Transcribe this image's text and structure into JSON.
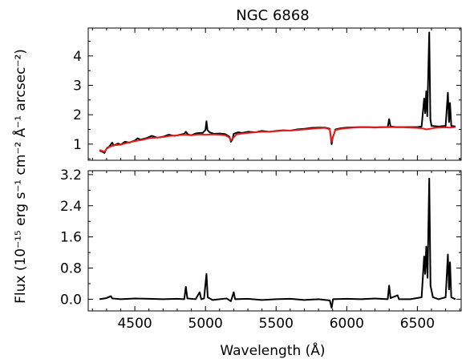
{
  "chart_data": {
    "type": "line",
    "title": "NGC 6868",
    "xlabel": "Wavelength (Å)",
    "ylabel": "Flux (10⁻¹⁵ erg s⁻¹ cm⁻² Å⁻¹ arcsec⁻²)",
    "xlim": [
      4170,
      6810
    ],
    "x_ticks": [
      4500,
      5000,
      5500,
      6000,
      6500
    ],
    "panels": [
      {
        "ylim": [
          0.45,
          4.95
        ],
        "y_ticks": [
          1,
          2,
          3,
          4
        ],
        "series": [
          {
            "color": "#000000",
            "points": [
              [
                4250,
                0.78
              ],
              [
                4270,
                0.74
              ],
              [
                4285,
                0.7
              ],
              [
                4300,
                0.85
              ],
              [
                4320,
                0.92
              ],
              [
                4340,
                1.05
              ],
              [
                4350,
                0.95
              ],
              [
                4380,
                1.02
              ],
              [
                4400,
                0.98
              ],
              [
                4430,
                1.08
              ],
              [
                4460,
                1.05
              ],
              [
                4500,
                1.12
              ],
              [
                4520,
                1.2
              ],
              [
                4540,
                1.15
              ],
              [
                4580,
                1.2
              ],
              [
                4620,
                1.28
              ],
              [
                4660,
                1.22
              ],
              [
                4700,
                1.25
              ],
              [
                4740,
                1.32
              ],
              [
                4780,
                1.28
              ],
              [
                4820,
                1.32
              ],
              [
                4850,
                1.35
              ],
              [
                4861,
                1.42
              ],
              [
                4875,
                1.33
              ],
              [
                4900,
                1.3
              ],
              [
                4930,
                1.36
              ],
              [
                4959,
                1.38
              ],
              [
                4980,
                1.38
              ],
              [
                5000,
                1.48
              ],
              [
                5007,
                1.78
              ],
              [
                5014,
                1.48
              ],
              [
                5030,
                1.4
              ],
              [
                5060,
                1.35
              ],
              [
                5100,
                1.36
              ],
              [
                5140,
                1.34
              ],
              [
                5170,
                1.25
              ],
              [
                5180,
                1.08
              ],
              [
                5190,
                1.15
              ],
              [
                5200,
                1.35
              ],
              [
                5230,
                1.4
              ],
              [
                5260,
                1.38
              ],
              [
                5300,
                1.42
              ],
              [
                5350,
                1.4
              ],
              [
                5400,
                1.45
              ],
              [
                5450,
                1.42
              ],
              [
                5500,
                1.45
              ],
              [
                5550,
                1.47
              ],
              [
                5600,
                1.46
              ],
              [
                5650,
                1.5
              ],
              [
                5700,
                1.52
              ],
              [
                5750,
                1.55
              ],
              [
                5800,
                1.56
              ],
              [
                5850,
                1.56
              ],
              [
                5880,
                1.52
              ],
              [
                5893,
                1.0
              ],
              [
                5900,
                1.2
              ],
              [
                5920,
                1.5
              ],
              [
                5960,
                1.54
              ],
              [
                6000,
                1.56
              ],
              [
                6050,
                1.57
              ],
              [
                6100,
                1.58
              ],
              [
                6150,
                1.58
              ],
              [
                6200,
                1.57
              ],
              [
                6250,
                1.58
              ],
              [
                6290,
                1.58
              ],
              [
                6300,
                1.85
              ],
              [
                6310,
                1.6
              ],
              [
                6350,
                1.58
              ],
              [
                6400,
                1.58
              ],
              [
                6450,
                1.58
              ],
              [
                6500,
                1.58
              ],
              [
                6530,
                1.6
              ],
              [
                6548,
                2.55
              ],
              [
                6555,
                2.05
              ],
              [
                6563,
                2.8
              ],
              [
                6570,
                1.95
              ],
              [
                6584,
                4.8
              ],
              [
                6592,
                1.85
              ],
              [
                6600,
                1.62
              ],
              [
                6650,
                1.6
              ],
              [
                6700,
                1.62
              ],
              [
                6716,
                2.75
              ],
              [
                6724,
                1.75
              ],
              [
                6731,
                2.4
              ],
              [
                6740,
                1.62
              ],
              [
                6770,
                1.6
              ]
            ]
          },
          {
            "color": "#e81e1e",
            "points": [
              [
                4250,
                0.8
              ],
              [
                4270,
                0.77
              ],
              [
                4285,
                0.74
              ],
              [
                4300,
                0.84
              ],
              [
                4320,
                0.9
              ],
              [
                4350,
                0.96
              ],
              [
                4400,
                0.98
              ],
              [
                4450,
                1.05
              ],
              [
                4500,
                1.1
              ],
              [
                4550,
                1.14
              ],
              [
                4600,
                1.2
              ],
              [
                4650,
                1.22
              ],
              [
                4700,
                1.24
              ],
              [
                4750,
                1.28
              ],
              [
                4800,
                1.3
              ],
              [
                4850,
                1.32
              ],
              [
                4900,
                1.3
              ],
              [
                4950,
                1.33
              ],
              [
                5000,
                1.32
              ],
              [
                5050,
                1.33
              ],
              [
                5100,
                1.32
              ],
              [
                5140,
                1.3
              ],
              [
                5170,
                1.22
              ],
              [
                5180,
                1.12
              ],
              [
                5190,
                1.18
              ],
              [
                5220,
                1.33
              ],
              [
                5260,
                1.36
              ],
              [
                5300,
                1.38
              ],
              [
                5350,
                1.4
              ],
              [
                5400,
                1.42
              ],
              [
                5450,
                1.42
              ],
              [
                5500,
                1.44
              ],
              [
                5550,
                1.46
              ],
              [
                5600,
                1.46
              ],
              [
                5650,
                1.48
              ],
              [
                5700,
                1.5
              ],
              [
                5750,
                1.52
              ],
              [
                5800,
                1.54
              ],
              [
                5850,
                1.55
              ],
              [
                5880,
                1.5
              ],
              [
                5893,
                1.08
              ],
              [
                5900,
                1.22
              ],
              [
                5920,
                1.48
              ],
              [
                5960,
                1.52
              ],
              [
                6000,
                1.54
              ],
              [
                6050,
                1.56
              ],
              [
                6100,
                1.57
              ],
              [
                6150,
                1.57
              ],
              [
                6200,
                1.56
              ],
              [
                6250,
                1.57
              ],
              [
                6300,
                1.58
              ],
              [
                6350,
                1.57
              ],
              [
                6400,
                1.57
              ],
              [
                6450,
                1.56
              ],
              [
                6500,
                1.55
              ],
              [
                6540,
                1.53
              ],
              [
                6563,
                1.5
              ],
              [
                6590,
                1.52
              ],
              [
                6620,
                1.55
              ],
              [
                6650,
                1.56
              ],
              [
                6700,
                1.57
              ],
              [
                6730,
                1.56
              ],
              [
                6770,
                1.58
              ]
            ]
          }
        ]
      },
      {
        "ylim": [
          -0.3,
          3.3
        ],
        "y_ticks": [
          0.0,
          0.8,
          1.6,
          2.4,
          3.2
        ],
        "y_tick_labels": [
          "0.0",
          "0.8",
          "1.6",
          "2.4",
          "3.2"
        ],
        "series": [
          {
            "color": "#000000",
            "points": [
              [
                4250,
                0.0
              ],
              [
                4300,
                0.03
              ],
              [
                4330,
                0.08
              ],
              [
                4340,
                0.02
              ],
              [
                4400,
                0.0
              ],
              [
                4500,
                0.02
              ],
              [
                4600,
                0.01
              ],
              [
                4700,
                0.0
              ],
              [
                4800,
                0.01
              ],
              [
                4850,
                0.0
              ],
              [
                4861,
                0.32
              ],
              [
                4872,
                0.02
              ],
              [
                4930,
                0.0
              ],
              [
                4959,
                0.18
              ],
              [
                4970,
                0.0
              ],
              [
                4990,
                0.02
              ],
              [
                5007,
                0.65
              ],
              [
                5016,
                0.05
              ],
              [
                5050,
                -0.02
              ],
              [
                5100,
                0.0
              ],
              [
                5150,
                0.02
              ],
              [
                5180,
                -0.05
              ],
              [
                5200,
                0.18
              ],
              [
                5210,
                0.0
              ],
              [
                5300,
                0.01
              ],
              [
                5400,
                -0.02
              ],
              [
                5500,
                0.0
              ],
              [
                5600,
                0.01
              ],
              [
                5700,
                -0.02
              ],
              [
                5800,
                0.0
              ],
              [
                5850,
                -0.02
              ],
              [
                5880,
                -0.03
              ],
              [
                5893,
                -0.22
              ],
              [
                5903,
                0.0
              ],
              [
                6000,
                0.01
              ],
              [
                6100,
                0.0
              ],
              [
                6200,
                0.02
              ],
              [
                6290,
                0.0
              ],
              [
                6300,
                0.35
              ],
              [
                6310,
                0.03
              ],
              [
                6360,
                0.1
              ],
              [
                6370,
                0.0
              ],
              [
                6450,
                0.0
              ],
              [
                6530,
                0.05
              ],
              [
                6548,
                1.1
              ],
              [
                6555,
                0.65
              ],
              [
                6563,
                1.35
              ],
              [
                6572,
                0.55
              ],
              [
                6584,
                3.1
              ],
              [
                6593,
                0.35
              ],
              [
                6610,
                0.05
              ],
              [
                6650,
                0.0
              ],
              [
                6700,
                0.05
              ],
              [
                6716,
                1.15
              ],
              [
                6724,
                0.25
              ],
              [
                6731,
                0.95
              ],
              [
                6740,
                0.05
              ],
              [
                6770,
                0.0
              ]
            ]
          }
        ]
      }
    ]
  }
}
